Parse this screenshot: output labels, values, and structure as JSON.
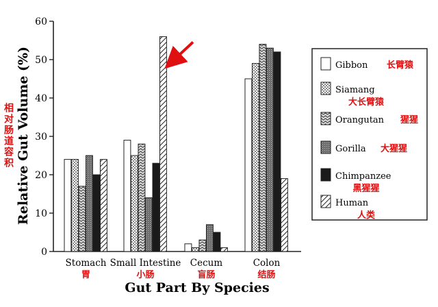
{
  "chart_data": {
    "type": "bar",
    "title": "",
    "xlabel": "Gut Part By Species",
    "ylabel": "Relative Gut Volume (%)",
    "ylabel_cn": "相对肠道容积",
    "ylim": [
      0,
      60
    ],
    "yticks": [
      0,
      10,
      20,
      30,
      40,
      50,
      60
    ],
    "grid": false,
    "legend_position": "right",
    "categories": [
      "Stomach",
      "Small Intestine",
      "Cecum",
      "Colon"
    ],
    "categories_cn": [
      "胃",
      "小肠",
      "盲肠",
      "结肠"
    ],
    "series": [
      {
        "name": "Gibbon",
        "name_cn": "长臂猿",
        "pattern": "white",
        "values": [
          24,
          29,
          2,
          45
        ]
      },
      {
        "name": "Siamang",
        "name_cn": "大长臂猿",
        "pattern": "dots",
        "values": [
          24,
          25,
          1,
          49
        ]
      },
      {
        "name": "Orangutan",
        "name_cn": "猩猩",
        "pattern": "waves",
        "values": [
          17,
          28,
          3,
          54
        ]
      },
      {
        "name": "Gorilla",
        "name_cn": "大猩猩",
        "pattern": "dense",
        "values": [
          25,
          14,
          7,
          53
        ]
      },
      {
        "name": "Chimpanzee",
        "name_cn": "黑猩猩",
        "pattern": "black",
        "values": [
          20,
          23,
          5,
          52
        ]
      },
      {
        "name": "Human",
        "name_cn": "人类",
        "pattern": "hatch",
        "values": [
          24,
          56,
          1,
          19
        ]
      }
    ],
    "annotation": {
      "type": "arrow",
      "color": "#e01010",
      "target": {
        "category": "Small Intestine",
        "series": "Human"
      }
    }
  }
}
